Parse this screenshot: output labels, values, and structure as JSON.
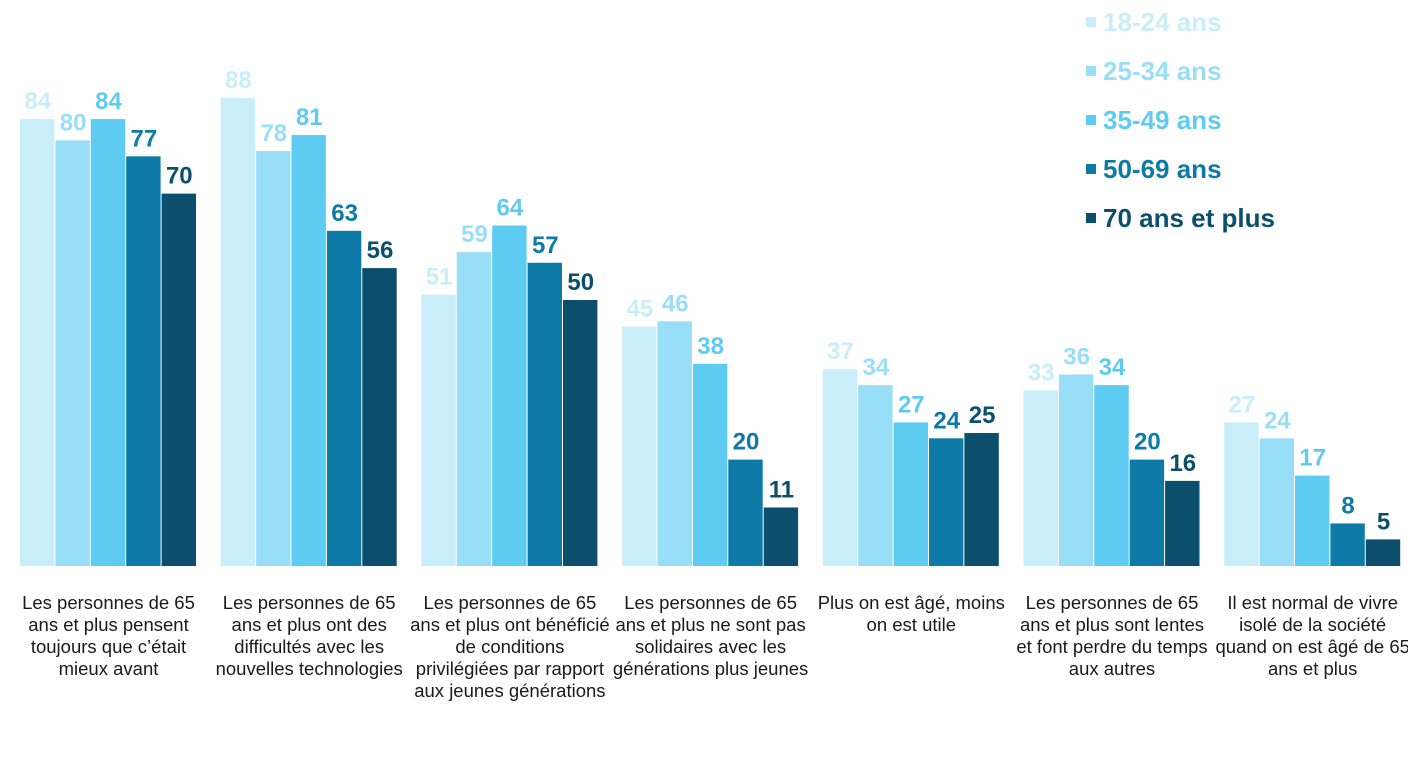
{
  "chart_data": {
    "type": "bar",
    "categories": [
      "Les personnes de 65 ans et plus pensent toujours que c’était mieux avant",
      "Les personnes de 65 ans et plus ont des difficultés avec les nouvelles technologies",
      "Les personnes de 65 ans et plus ont bénéficié de conditions privilégiées par rapport aux jeunes générations",
      "Les personnes de 65 ans et plus ne sont pas solidaires avec les générations plus jeunes",
      "Plus on est âgé, moins on est utile",
      "Les personnes de 65 ans et plus sont lentes et font perdre du temps aux autres",
      "Il est normal de vivre isolé de la société quand on est âgé de 65 ans et plus"
    ],
    "series": [
      {
        "name": "18-24 ans",
        "color": "#c9edf9",
        "values": [
          84,
          88,
          51,
          45,
          37,
          33,
          27
        ]
      },
      {
        "name": "25-34 ans",
        "color": "#99def7",
        "values": [
          80,
          78,
          59,
          46,
          34,
          36,
          24
        ]
      },
      {
        "name": "35-49 ans",
        "color": "#5ecbf2",
        "values": [
          84,
          81,
          64,
          38,
          27,
          34,
          17
        ]
      },
      {
        "name": "50-69 ans",
        "color": "#0e7aa8",
        "values": [
          77,
          63,
          57,
          20,
          24,
          20,
          8
        ]
      },
      {
        "name": "70 ans et plus",
        "color": "#0b4f6c",
        "values": [
          70,
          56,
          50,
          11,
          25,
          16,
          5
        ]
      }
    ],
    "ylim": [
      0,
      100
    ],
    "legend": "top-right"
  }
}
